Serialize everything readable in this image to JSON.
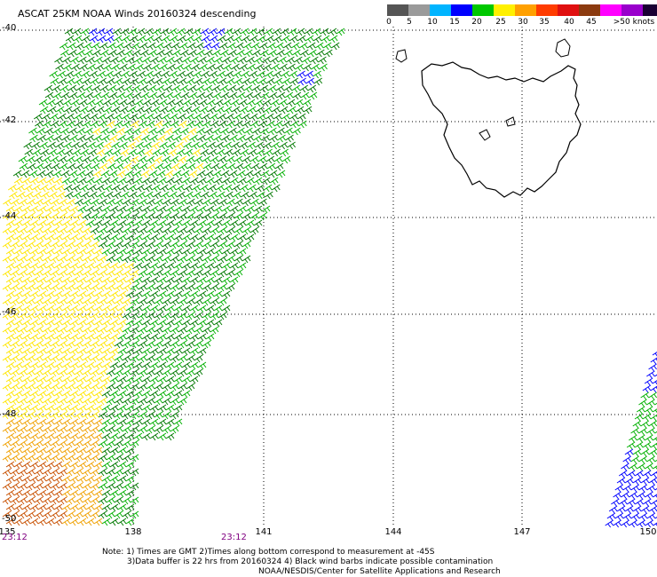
{
  "title": "ASCAT 25KM NOAA Winds 20160324 descending",
  "lat_labels": [
    "-40",
    "-42",
    "-44",
    "-46",
    "-48",
    "-50"
  ],
  "lon_labels": [
    "135",
    "138",
    "141",
    "144",
    "147",
    "150"
  ],
  "time_labels": [
    "23:12",
    "23:12"
  ],
  "speed_scale": {
    "labels": [
      "0",
      "5",
      "10",
      "15",
      "20",
      "25",
      "30",
      "35",
      "40",
      "45",
      ">50 knots"
    ],
    "colors": [
      "#555555",
      "#9a9a9a",
      "#00b4ff",
      "#0000ff",
      "#00c800",
      "#fff000",
      "#ffa000",
      "#ff3c00",
      "#e01010",
      "#8b3a0f",
      "#ff00ff",
      "#9900cc",
      "#1a0033"
    ]
  },
  "colors": {
    "green": "#00b000",
    "dark_green": "#007800",
    "yellow": "#ffe600",
    "orange": "#f0a000",
    "dark_orange": "#c85000",
    "blue": "#0000ff",
    "grid": "#000000"
  },
  "notes": {
    "line1": "Note: 1) Times are GMT 2)Times along bottom correspond to measurement at -45S",
    "line2": "3)Data buffer is 22 hrs from 20160324 4) Black wind barbs indicate possible contamination",
    "line3": "NOAA/NESDIS/Center for Satellite Applications and Research"
  }
}
